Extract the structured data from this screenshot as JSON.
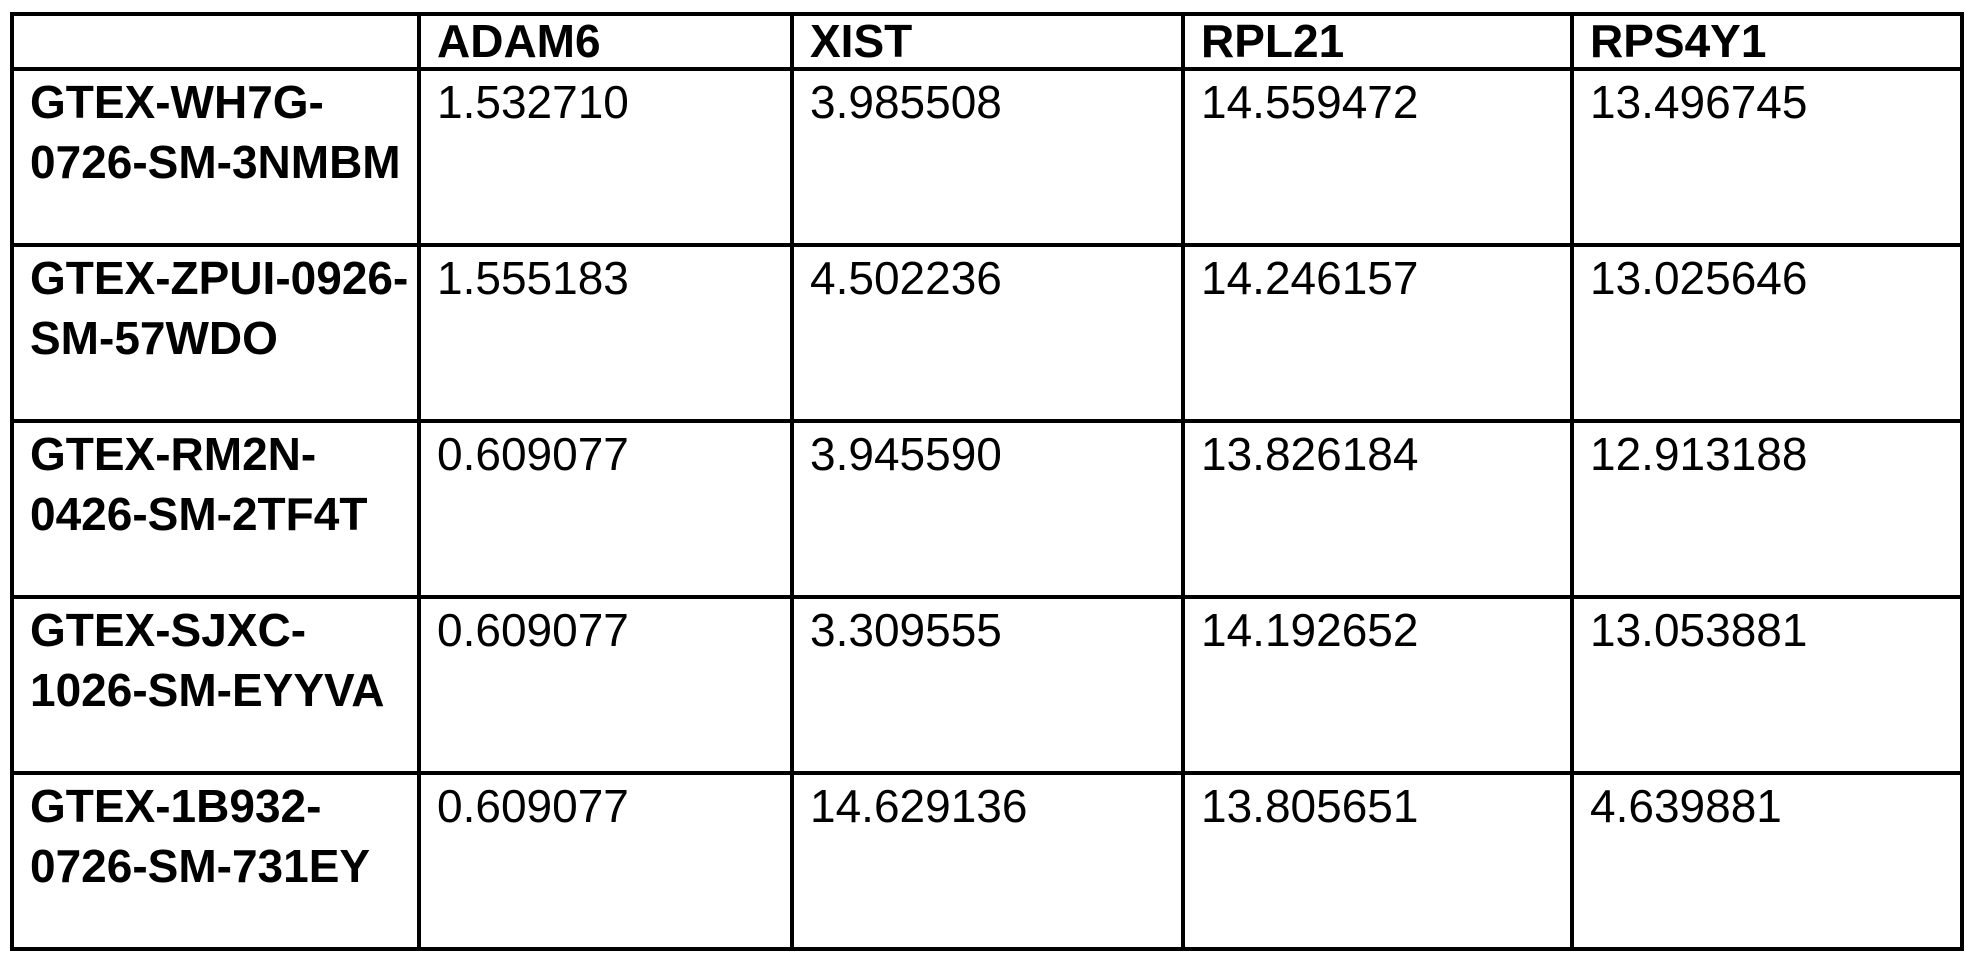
{
  "table": {
    "corner_label": "",
    "columns": [
      "ADAM6",
      "XIST",
      "RPL21",
      "RPS4Y1"
    ],
    "rows": [
      {
        "label": "GTEX-WH7G-0726-SM-3NMBM",
        "values": [
          "1.532710",
          "3.985508",
          "14.559472",
          "13.496745"
        ]
      },
      {
        "label": "GTEX-ZPUI-0926-SM-57WDO",
        "values": [
          "1.555183",
          "4.502236",
          "14.246157",
          "13.025646"
        ]
      },
      {
        "label": "GTEX-RM2N-0426-SM-2TF4T",
        "values": [
          "0.609077",
          "3.945590",
          "13.826184",
          "12.913188"
        ]
      },
      {
        "label": "GTEX-SJXC-1026-SM-EYYVA",
        "values": [
          "0.609077",
          "3.309555",
          "14.192652",
          "13.053881"
        ]
      },
      {
        "label": "GTEX-1B932-0726-SM-731EY",
        "values": [
          "0.609077",
          "14.629136",
          "13.805651",
          "4.639881"
        ]
      }
    ]
  },
  "chart_data": {
    "type": "table",
    "title": "",
    "index_label": "",
    "columns": [
      "ADAM6",
      "XIST",
      "RPL21",
      "RPS4Y1"
    ],
    "index": [
      "GTEX-WH7G-0726-SM-3NMBM",
      "GTEX-ZPUI-0926-SM-57WDO",
      "GTEX-RM2N-0426-SM-2TF4T",
      "GTEX-SJXC-1026-SM-EYYVA",
      "GTEX-1B932-0726-SM-731EY"
    ],
    "values": [
      [
        1.53271,
        3.985508,
        14.559472,
        13.496745
      ],
      [
        1.555183,
        4.502236,
        14.246157,
        13.025646
      ],
      [
        0.609077,
        3.94559,
        13.826184,
        12.913188
      ],
      [
        0.609077,
        3.309555,
        14.192652,
        13.053881
      ],
      [
        0.609077,
        14.629136,
        13.805651,
        4.639881
      ]
    ],
    "layout": {
      "grid": true,
      "border_color": "#000000",
      "background": "#ffffff",
      "header_bold": true,
      "index_bold": true
    }
  }
}
